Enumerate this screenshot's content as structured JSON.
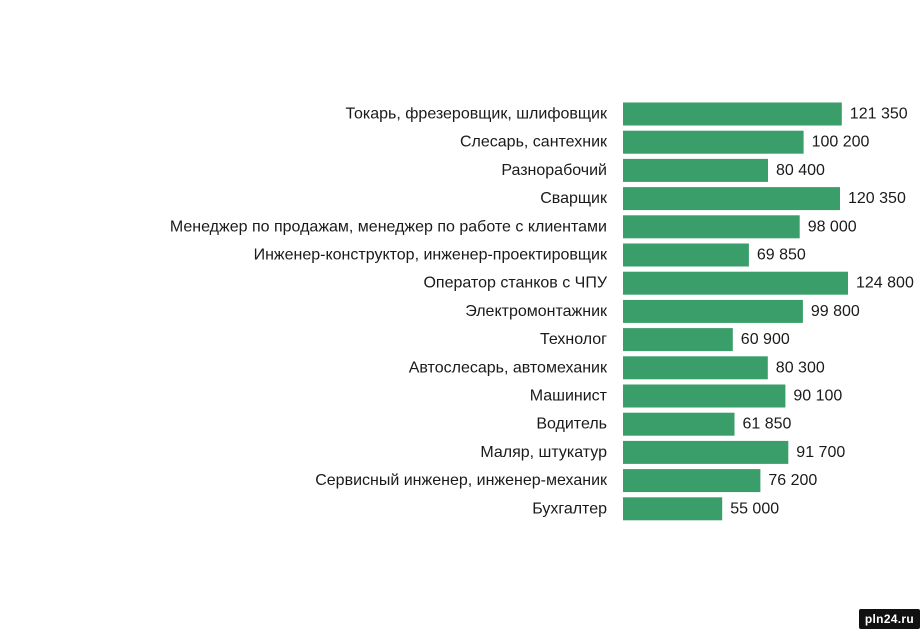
{
  "chart_data": {
    "type": "bar",
    "orientation": "horizontal",
    "categories": [
      "Токарь, фрезеровщик, шлифовщик",
      "Слесарь, сантехник",
      "Разнорабочий",
      "Сварщик",
      "Менеджер по продажам, менеджер по работе с клиентами",
      "Инженер-конструктор, инженер-проектировщик",
      "Оператор станков с ЧПУ",
      "Электромонтажник",
      "Технолог",
      "Автослесарь, автомеханик",
      "Машинист",
      "Водитель",
      "Маляр, штукатур",
      "Сервисный инженер, инженер-механик",
      "Бухгалтер"
    ],
    "values": [
      121350,
      100200,
      80400,
      120350,
      98000,
      69850,
      124800,
      99800,
      60900,
      80300,
      90100,
      61850,
      91700,
      76200,
      55000
    ],
    "value_labels": [
      "121 350",
      "100 200",
      "80 400",
      "120 350",
      "98 000",
      "69 850",
      "124 800",
      "99 800",
      "60 900",
      "80 300",
      "90 100",
      "61 850",
      "91 700",
      "76 200",
      "55 000"
    ],
    "bar_color": "#3a9e6a",
    "grid": false,
    "legend": "none"
  },
  "watermark": {
    "text": "pln24.ru"
  }
}
